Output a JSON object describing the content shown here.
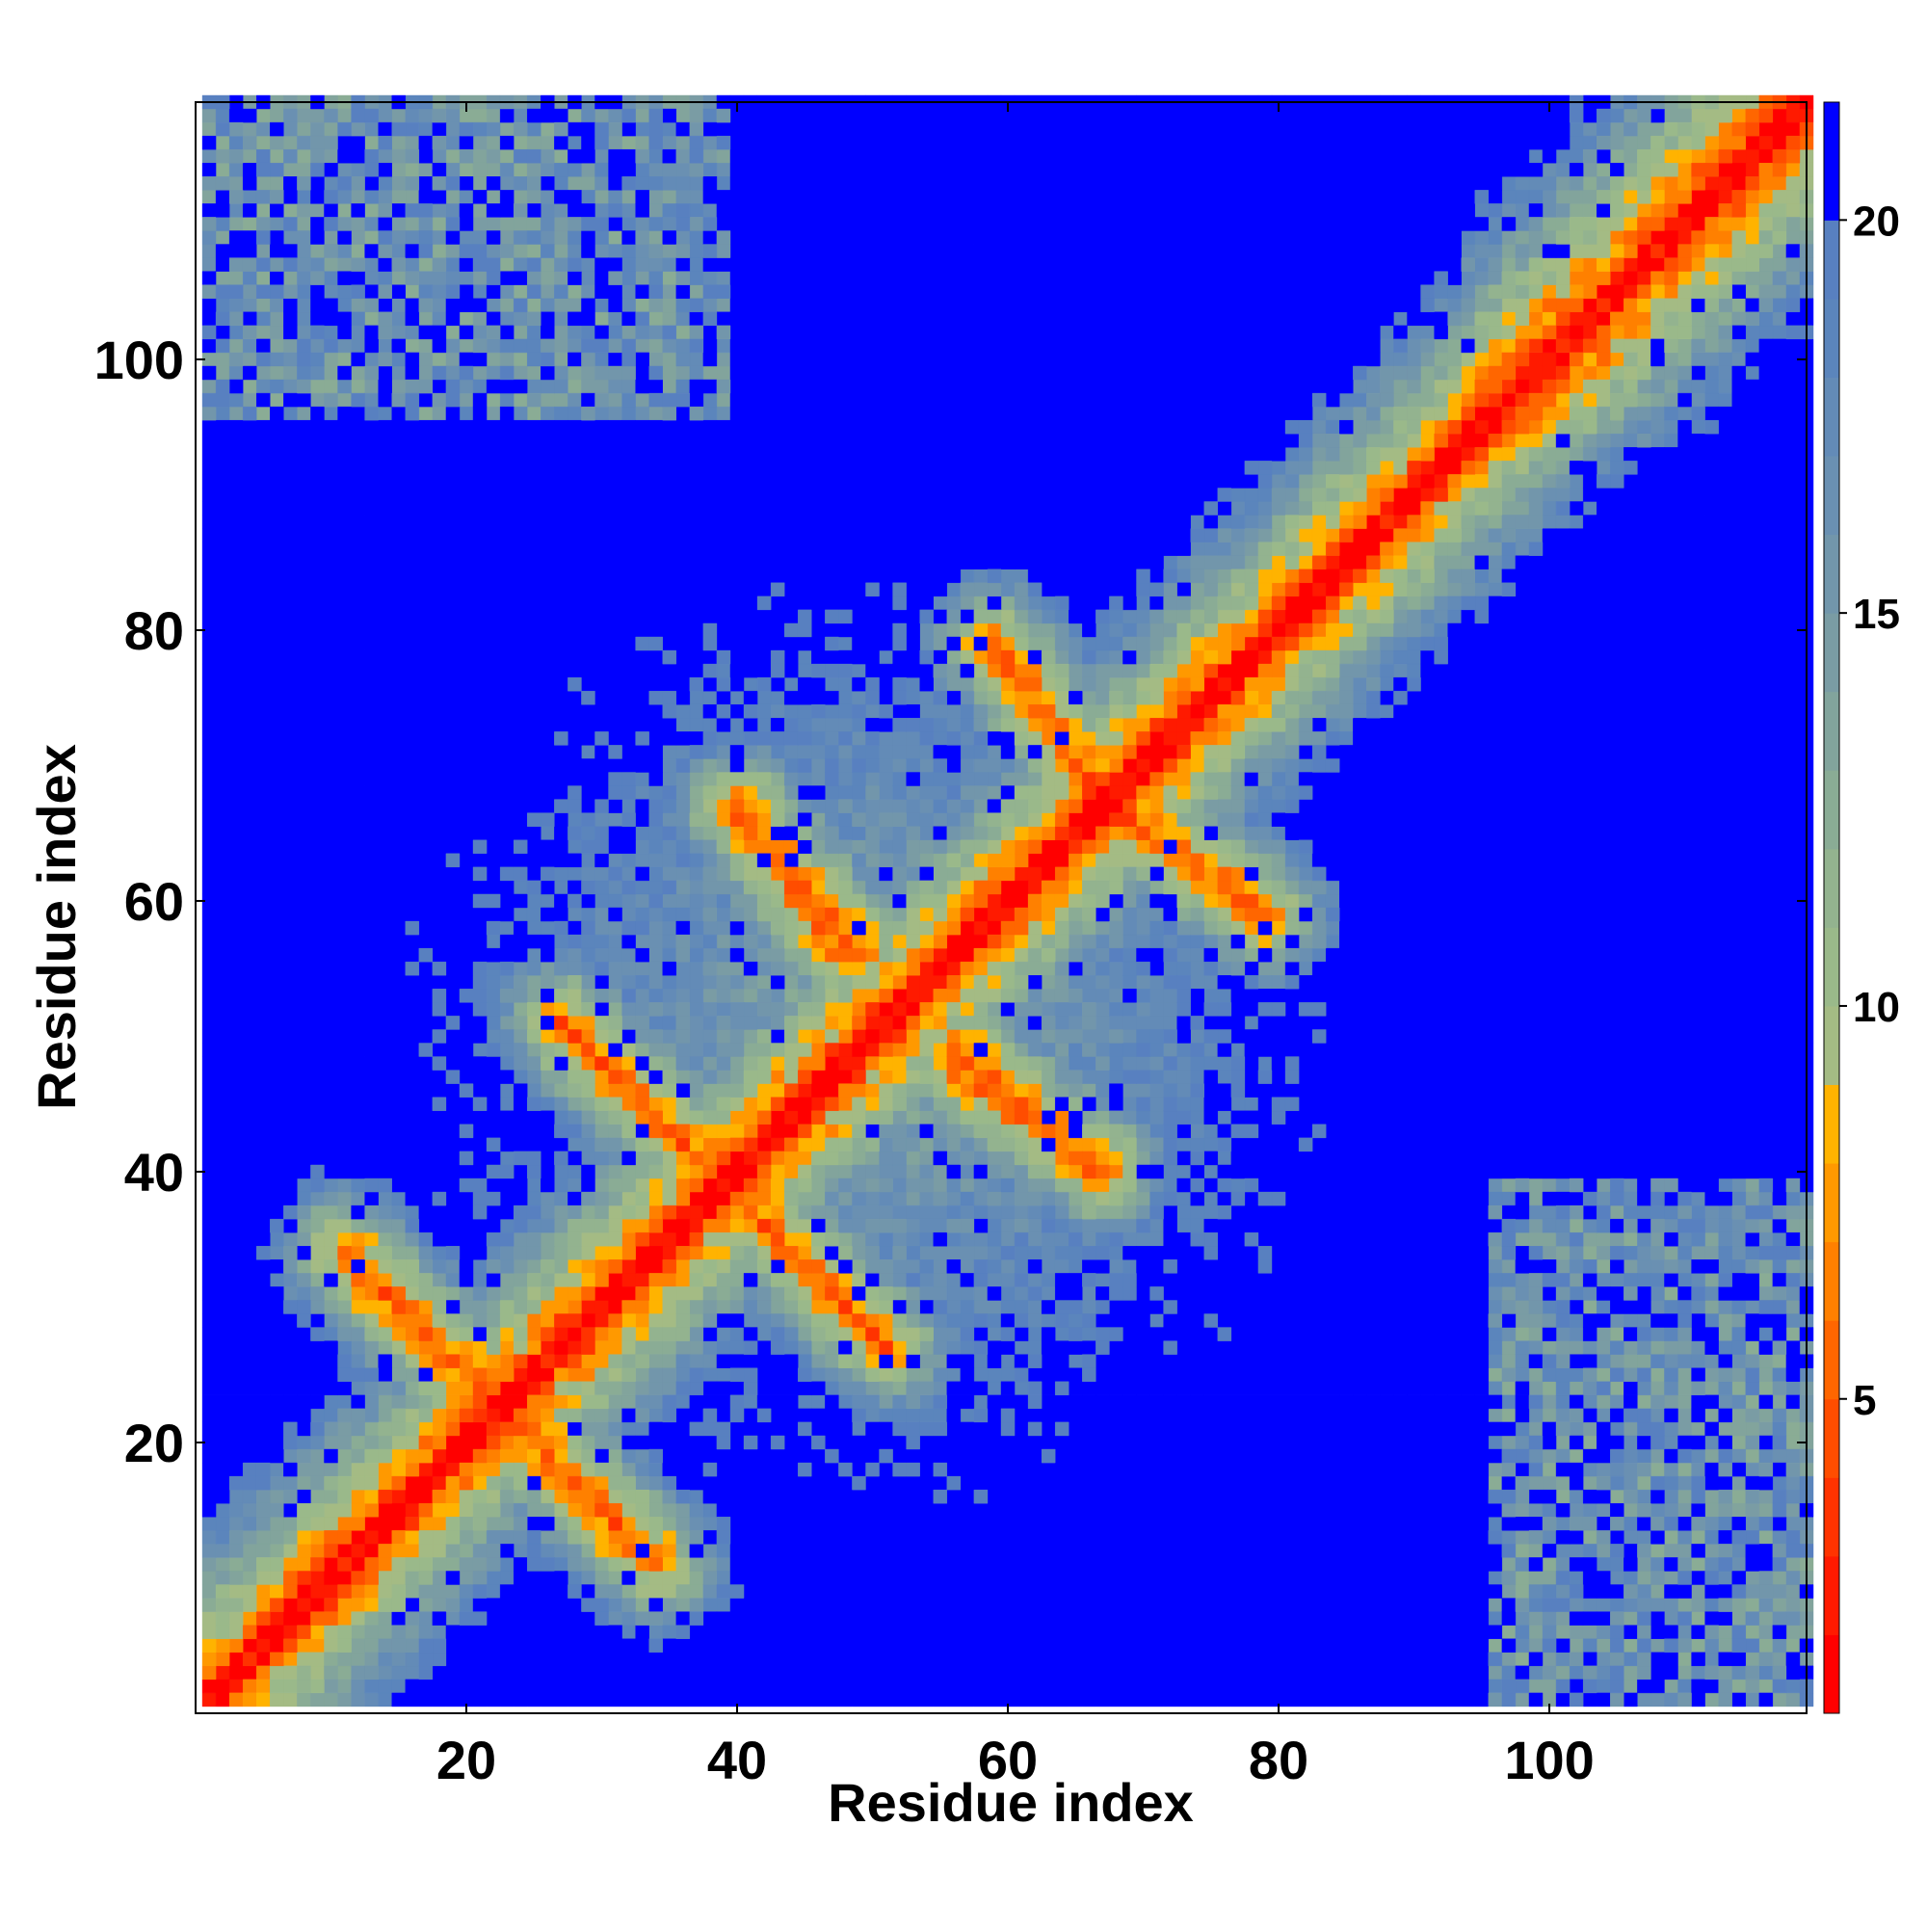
{
  "chart_data": {
    "type": "heatmap",
    "title": "",
    "xlabel": "Residue index",
    "ylabel": "Residue index",
    "n_residues": 119,
    "xlim": [
      1,
      119
    ],
    "ylim": [
      1,
      119
    ],
    "x_ticks": [
      20,
      40,
      60,
      80,
      100
    ],
    "y_ticks": [
      20,
      40,
      60,
      80,
      100
    ],
    "colorbar": {
      "range": [
        1,
        21.5
      ],
      "ticks": [
        5,
        10,
        15,
        20
      ],
      "bins": [
        {
          "max": 2.0,
          "color": "#ff0000"
        },
        {
          "max": 3.0,
          "color": "#ff1a00"
        },
        {
          "max": 4.0,
          "color": "#ff3300"
        },
        {
          "max": 5.0,
          "color": "#ff4d00"
        },
        {
          "max": 6.0,
          "color": "#ff6600"
        },
        {
          "max": 7.0,
          "color": "#ff8000"
        },
        {
          "max": 8.0,
          "color": "#ff9900"
        },
        {
          "max": 9.0,
          "color": "#ffb300"
        },
        {
          "max": 10.0,
          "color": "#a4bb84"
        },
        {
          "max": 11.0,
          "color": "#9ab98a"
        },
        {
          "max": 12.0,
          "color": "#93b38f"
        },
        {
          "max": 13.0,
          "color": "#8aac95"
        },
        {
          "max": 14.0,
          "color": "#82a49c"
        },
        {
          "max": 15.0,
          "color": "#7a9ca4"
        },
        {
          "max": 16.0,
          "color": "#7296ab"
        },
        {
          "max": 17.0,
          "color": "#6a90b2"
        },
        {
          "max": 18.0,
          "color": "#638bb7"
        },
        {
          "max": 19.0,
          "color": "#5b85bc"
        },
        {
          "max": 20.0,
          "color": "#5880c0"
        },
        {
          "max": 21.5,
          "color": "#0000ff"
        }
      ]
    },
    "contact_model": {
      "diagonal": {
        "slope_per_residue": 1.0
      },
      "antiparallel_strands": [
        {
          "a": [
            11,
            34
          ],
          "b": [
            34,
            11
          ]
        },
        {
          "a": [
            21,
            25
          ],
          "b": [
            34,
            12
          ]
        },
        {
          "a": [
            27,
            51
          ],
          "b": [
            51,
            27
          ]
        },
        {
          "a": [
            38,
            42
          ],
          "b": [
            51,
            28
          ]
        },
        {
          "a": [
            41,
            66
          ],
          "b": [
            48,
            56
          ]
        },
        {
          "a": [
            66,
            41
          ],
          "b": [
            56,
            48
          ]
        },
        {
          "a": [
            56,
            49
          ],
          "b": [
            67,
            40
          ]
        },
        {
          "a": [
            49,
            56
          ],
          "b": [
            40,
            67
          ]
        },
        {
          "a": [
            59,
            79
          ],
          "b": [
            68,
            66
          ]
        },
        {
          "a": [
            79,
            59
          ],
          "b": [
            66,
            68
          ]
        }
      ],
      "parallel_band": {
        "from": 94,
        "to": 119,
        "offset": 2
      }
    }
  }
}
